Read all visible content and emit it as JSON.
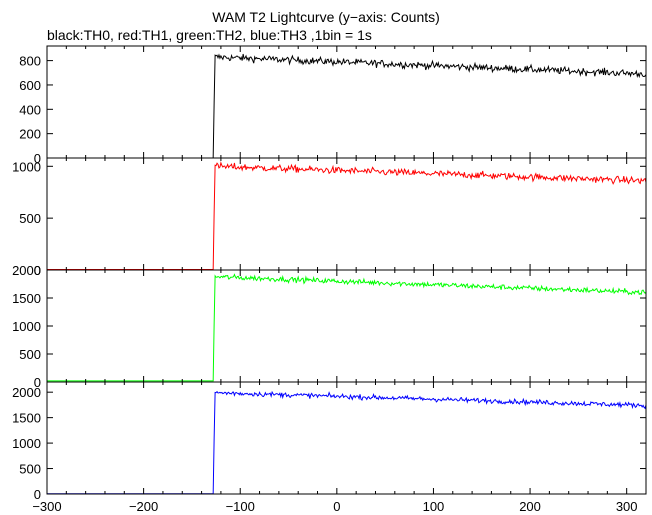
{
  "chart_data": {
    "type": "line",
    "title": "WAM T2 Lightcurve (y−axis: Counts)",
    "subtitle": "black:TH0, red:TH1, green:TH2, blue:TH3 ,1bin = 1s",
    "xlabel": "",
    "ylabel": "",
    "xlim": [
      -300,
      320
    ],
    "x_ticks": [
      "−300",
      "−200",
      "−100",
      "0",
      "100",
      "200",
      "300"
    ],
    "x_tick_values": [
      -300,
      -200,
      -100,
      0,
      100,
      200,
      300
    ],
    "onset_x": -127,
    "panels": [
      {
        "name": "TH0",
        "color": "#000000",
        "ylim": [
          0,
          920
        ],
        "y_tick_values": [
          0,
          200,
          400,
          600,
          800
        ],
        "y_ticks": [
          "0",
          "200",
          "400",
          "600",
          "800"
        ],
        "pre_level": 0,
        "post_start": 830,
        "post_end": 690,
        "noise": 28
      },
      {
        "name": "TH1",
        "color": "#ff0000",
        "ylim": [
          0,
          1080
        ],
        "y_tick_values": [
          0,
          500,
          1000
        ],
        "y_ticks": [
          "0",
          "500",
          "1000"
        ],
        "pre_level": 5,
        "post_start": 1000,
        "post_end": 860,
        "noise": 32
      },
      {
        "name": "TH2",
        "color": "#00ff00",
        "ylim": [
          0,
          2000
        ],
        "y_tick_values": [
          0,
          500,
          1000,
          1500,
          2000
        ],
        "y_ticks": [
          "0",
          "500",
          "1000",
          "1500",
          "2000"
        ],
        "pre_level": 20,
        "post_start": 1880,
        "post_end": 1600,
        "noise": 45
      },
      {
        "name": "TH3",
        "color": "#0000ff",
        "ylim": [
          0,
          2200
        ],
        "y_tick_values": [
          0,
          500,
          1000,
          1500,
          2000
        ],
        "y_ticks": [
          "0",
          "500",
          "1000",
          "1500",
          "2000"
        ],
        "pre_level": 5,
        "post_start": 1990,
        "post_end": 1740,
        "noise": 45
      }
    ]
  }
}
